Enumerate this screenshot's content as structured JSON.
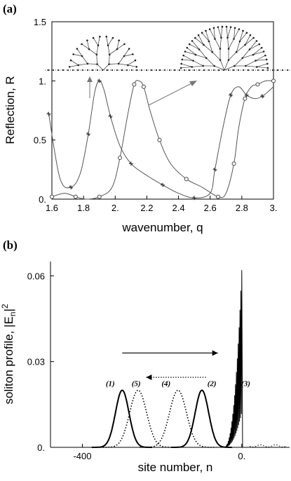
{
  "panels": {
    "a": {
      "label": "(a)"
    },
    "b": {
      "label": "(b)"
    }
  },
  "chart_data": [
    {
      "panel": "(a)",
      "type": "line",
      "xlabel": "wavenumber, q",
      "ylabel": "Reflection, R",
      "xlim": [
        1.6,
        3.0
      ],
      "ylim": [
        0,
        1.5
      ],
      "x_ticks": [
        "1.6",
        "1.8",
        "2.",
        "2.2",
        "2.4",
        "2.6",
        "2.8",
        "3."
      ],
      "y_ticks": [
        "0.",
        "0.5",
        "1.",
        "1.5"
      ],
      "inset": "two tree graphs attached to a chain, arrows point to first and second peaks",
      "series": [
        {
          "marker": "star",
          "x": [
            1.58,
            1.65,
            1.72,
            1.78,
            1.83,
            1.87,
            1.9,
            1.93,
            1.97,
            2.03,
            2.1,
            2.2,
            2.3,
            2.4,
            2.5,
            2.6,
            2.63,
            2.68,
            2.73,
            2.78,
            2.83,
            2.88,
            2.93,
            3.0
          ],
          "y": [
            0.72,
            0.18,
            0.1,
            0.22,
            0.55,
            0.9,
            1.0,
            0.92,
            0.7,
            0.45,
            0.3,
            0.2,
            0.12,
            0.05,
            0.01,
            0.05,
            0.25,
            0.6,
            0.88,
            0.95,
            0.88,
            0.85,
            0.87,
            0.95
          ]
        },
        {
          "marker": "circle",
          "x": [
            1.6,
            1.68,
            1.75,
            1.82,
            1.9,
            1.98,
            2.03,
            2.08,
            2.12,
            2.15,
            2.18,
            2.22,
            2.28,
            2.35,
            2.45,
            2.55,
            2.65,
            2.7,
            2.75,
            2.78,
            2.82,
            2.86,
            2.9,
            2.95,
            3.0
          ],
          "y": [
            0.02,
            0.05,
            0.02,
            0.0,
            0.02,
            0.1,
            0.35,
            0.72,
            0.97,
            1.0,
            0.95,
            0.75,
            0.5,
            0.3,
            0.17,
            0.1,
            0.02,
            0.05,
            0.3,
            0.6,
            0.85,
            0.95,
            0.97,
            1.0,
            1.0
          ]
        }
      ]
    },
    {
      "panel": "(b)",
      "type": "line",
      "xlabel": "site number, n",
      "ylabel": "soliton profile, |E_n|^2",
      "xlim": [
        -480,
        120
      ],
      "ylim": [
        0,
        0.065
      ],
      "x_ticks": [
        "-400",
        "0."
      ],
      "y_ticks": [
        "0.",
        "0.03",
        "0.06"
      ],
      "peak_labels": [
        "(1)",
        "(5)",
        "(4)",
        "(2)",
        "(3)"
      ],
      "arrows": [
        {
          "style": "solid",
          "from": -300,
          "to": -60,
          "level": 0.033
        },
        {
          "style": "dotted",
          "from": -90,
          "to": -240,
          "level": 0.0245
        }
      ],
      "series": [
        {
          "style": "solid",
          "gaussians": [
            {
              "center": -300,
              "height": 0.02,
              "width": 24
            },
            {
              "center": -100,
              "height": 0.02,
              "width": 24
            }
          ]
        },
        {
          "style": "dotted",
          "gaussians": [
            {
              "center": -260,
              "height": 0.02,
              "width": 30
            },
            {
              "center": -160,
              "height": 0.02,
              "width": 30
            }
          ]
        },
        {
          "style": "solid",
          "burst": {
            "from": -45,
            "to": 0,
            "max": 0.062
          }
        }
      ]
    }
  ]
}
